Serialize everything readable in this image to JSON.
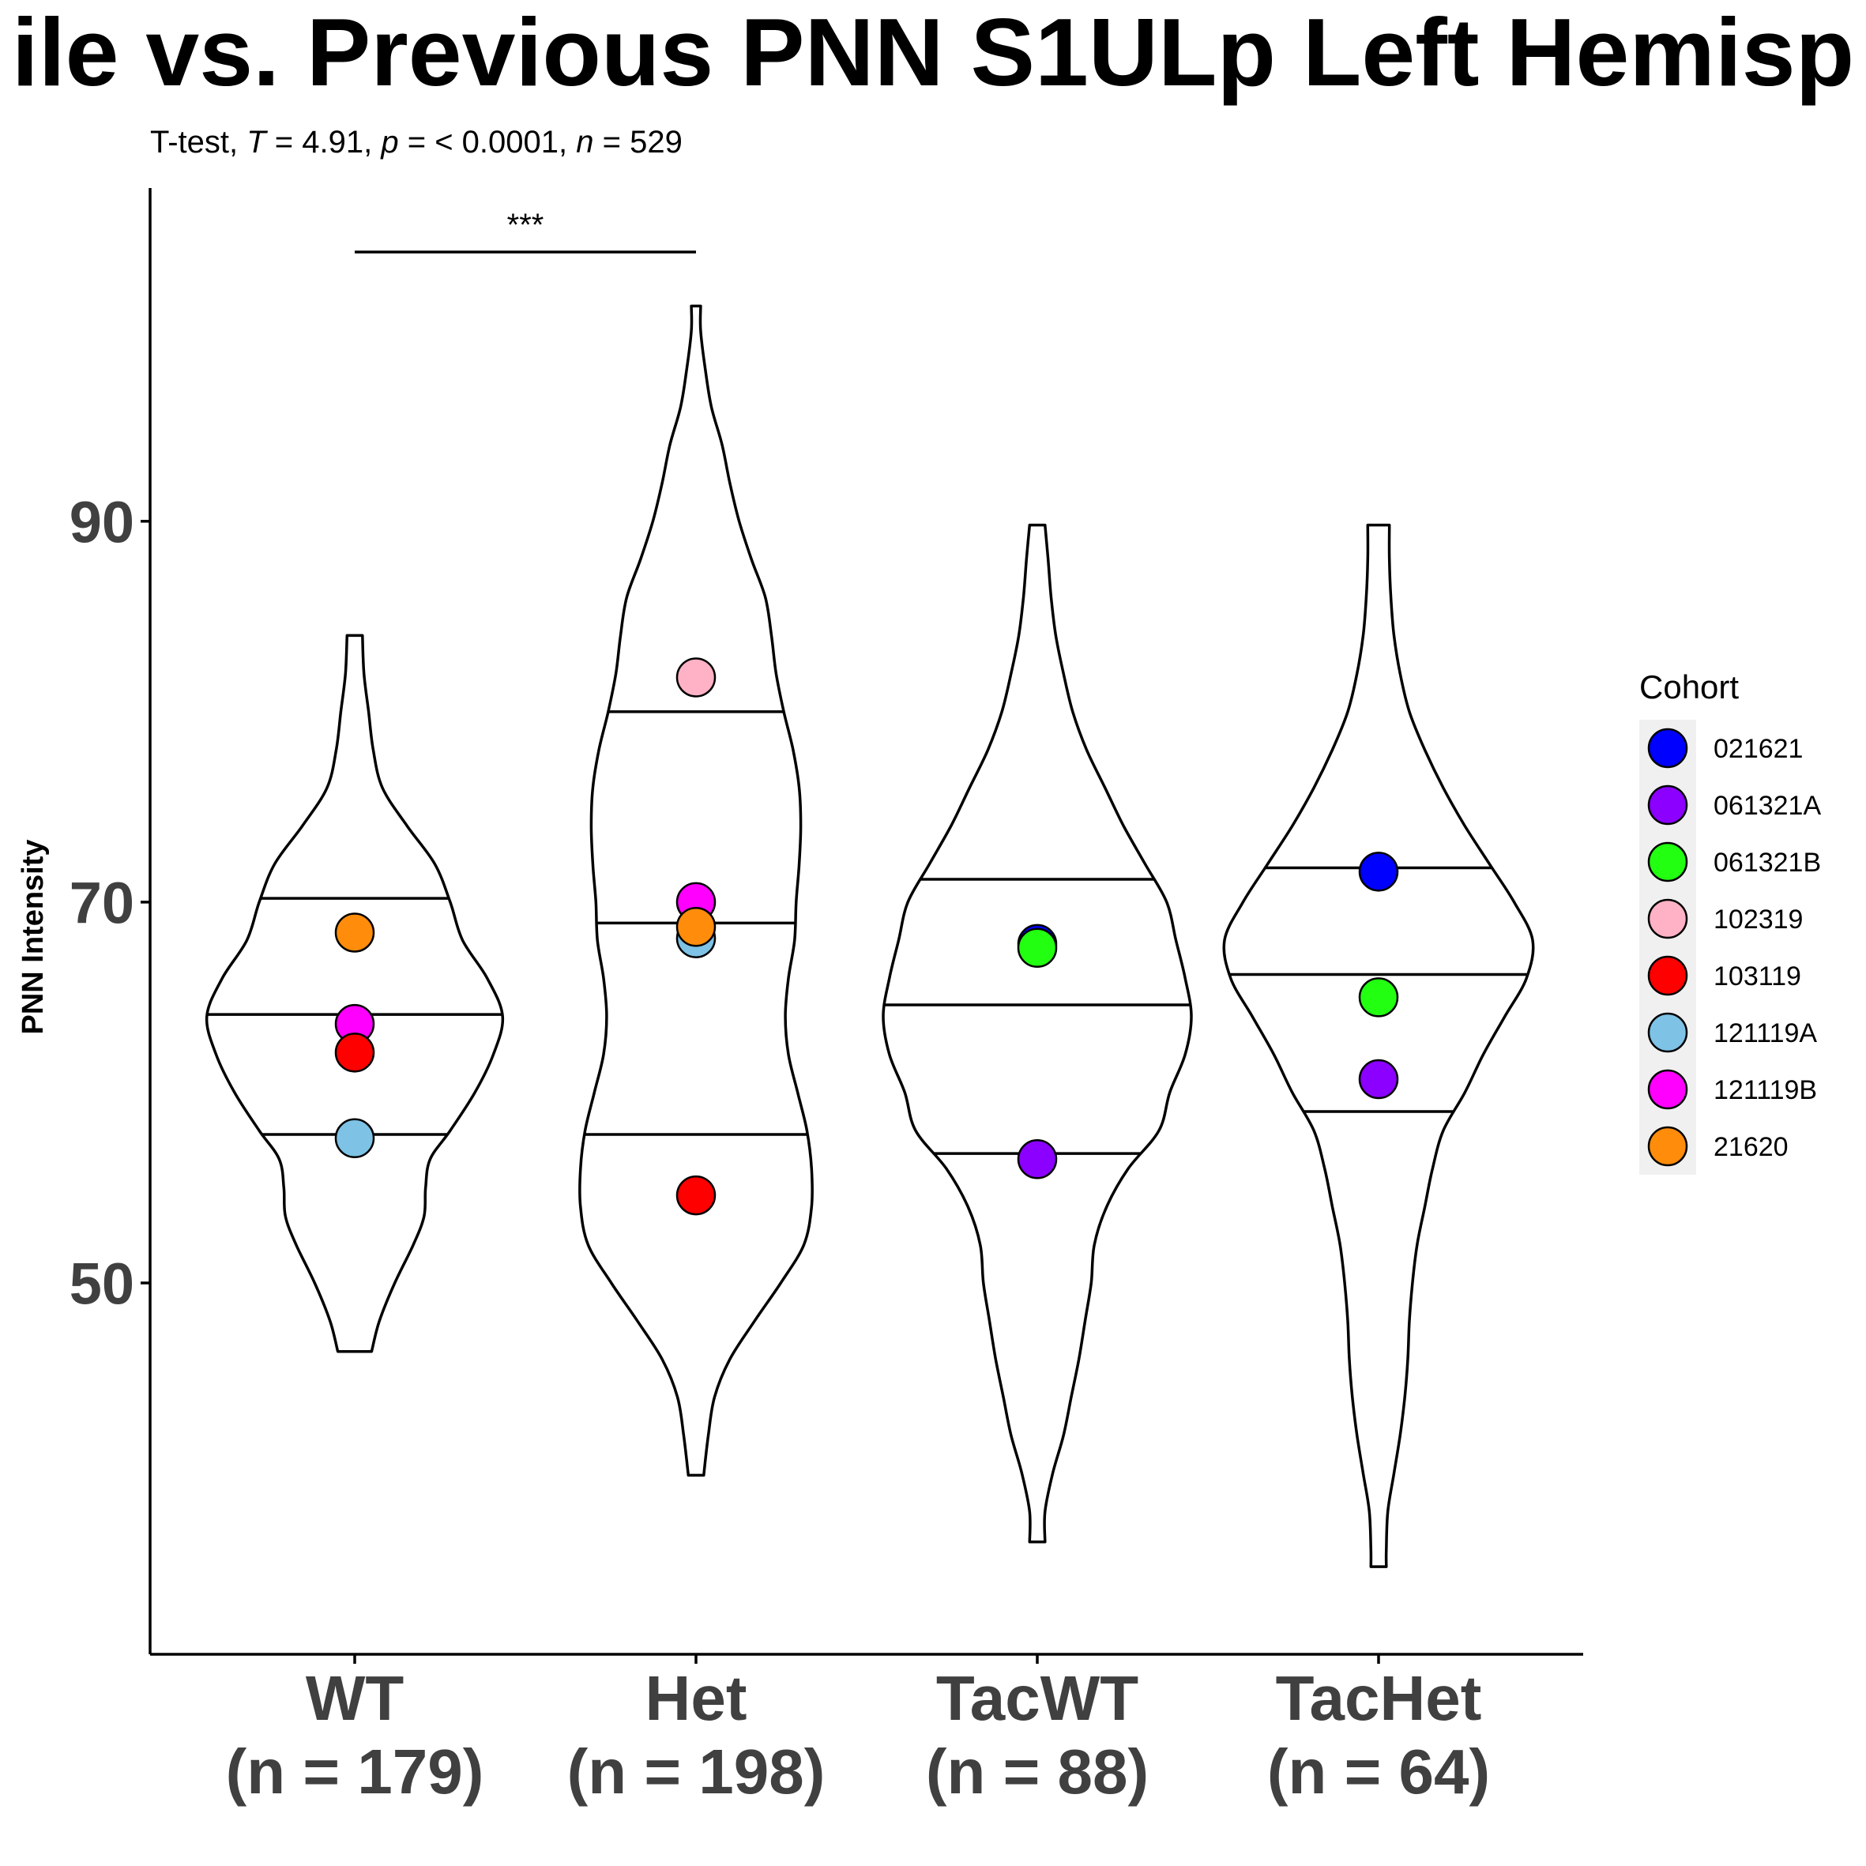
{
  "chart_data": {
    "type": "violin",
    "title": "ile vs. Previous PNN S1ULp Left Hemisp",
    "subtitle": {
      "prefix": "T-test, ",
      "t_symbol": "T",
      "t_text": " = 4.91, ",
      "p_symbol": "p",
      "p_text": " = < 0.0001, ",
      "n_symbol": "n",
      "n_text": " = 529"
    },
    "ylabel": "PNN Intensity",
    "ylim": [
      30.5,
      107.5
    ],
    "yticks": [
      50,
      70,
      90
    ],
    "categories": [
      {
        "name": "WT",
        "n_label": "(n = 179)"
      },
      {
        "name": "Het",
        "n_label": "(n = 198)"
      },
      {
        "name": "TacWT",
        "n_label": "(n = 88)"
      },
      {
        "name": "TacHet",
        "n_label": "(n = 64)"
      }
    ],
    "violins": [
      {
        "category": "WT",
        "quantiles": [
          57.8,
          64.1,
          70.2
        ],
        "profile": [
          [
            46.4,
            0.11
          ],
          [
            48,
            0.16
          ],
          [
            50,
            0.26
          ],
          [
            52,
            0.38
          ],
          [
            53.5,
            0.45
          ],
          [
            55,
            0.46
          ],
          [
            56.5,
            0.49
          ],
          [
            58,
            0.62
          ],
          [
            60,
            0.78
          ],
          [
            62,
            0.9
          ],
          [
            64,
            0.96
          ],
          [
            66,
            0.86
          ],
          [
            68,
            0.7
          ],
          [
            70,
            0.62
          ],
          [
            72,
            0.52
          ],
          [
            74,
            0.34
          ],
          [
            76,
            0.18
          ],
          [
            78,
            0.12
          ],
          [
            80,
            0.09
          ],
          [
            82,
            0.06
          ],
          [
            84,
            0.05
          ]
        ]
      },
      {
        "category": "Het",
        "quantiles": [
          57.8,
          68.9,
          80.0
        ],
        "profile": [
          [
            39.9,
            0.05
          ],
          [
            42,
            0.08
          ],
          [
            44,
            0.12
          ],
          [
            46,
            0.22
          ],
          [
            48,
            0.38
          ],
          [
            50,
            0.55
          ],
          [
            52,
            0.7
          ],
          [
            54,
            0.75
          ],
          [
            56,
            0.75
          ],
          [
            58,
            0.72
          ],
          [
            60,
            0.66
          ],
          [
            62,
            0.6
          ],
          [
            64,
            0.58
          ],
          [
            66,
            0.6
          ],
          [
            68,
            0.64
          ],
          [
            70,
            0.65
          ],
          [
            72,
            0.67
          ],
          [
            74,
            0.68
          ],
          [
            76,
            0.67
          ],
          [
            78,
            0.63
          ],
          [
            80,
            0.57
          ],
          [
            82,
            0.52
          ],
          [
            84,
            0.49
          ],
          [
            86,
            0.45
          ],
          [
            88,
            0.36
          ],
          [
            90,
            0.28
          ],
          [
            92,
            0.22
          ],
          [
            94,
            0.17
          ],
          [
            96,
            0.1
          ],
          [
            98,
            0.06
          ],
          [
            100,
            0.03
          ],
          [
            101.3,
            0.03
          ]
        ]
      },
      {
        "category": "TacWT",
        "quantiles": [
          56.8,
          64.6,
          71.2
        ],
        "profile": [
          [
            36.4,
            0.05
          ],
          [
            38,
            0.05
          ],
          [
            40,
            0.1
          ],
          [
            42,
            0.17
          ],
          [
            44,
            0.22
          ],
          [
            46,
            0.27
          ],
          [
            48,
            0.31
          ],
          [
            50,
            0.35
          ],
          [
            52,
            0.37
          ],
          [
            54,
            0.45
          ],
          [
            56,
            0.59
          ],
          [
            58,
            0.79
          ],
          [
            60,
            0.86
          ],
          [
            62,
            0.96
          ],
          [
            64,
            1.0
          ],
          [
            66,
            0.96
          ],
          [
            68,
            0.9
          ],
          [
            70,
            0.84
          ],
          [
            72,
            0.7
          ],
          [
            74,
            0.56
          ],
          [
            76,
            0.44
          ],
          [
            78,
            0.32
          ],
          [
            80,
            0.23
          ],
          [
            82,
            0.17
          ],
          [
            84,
            0.12
          ],
          [
            86,
            0.09
          ],
          [
            88,
            0.07
          ],
          [
            89.8,
            0.05
          ]
        ]
      },
      {
        "category": "TacHet",
        "quantiles": [
          59.0,
          66.2,
          71.8
        ],
        "profile": [
          [
            35.1,
            0.05
          ],
          [
            36,
            0.05
          ],
          [
            38,
            0.06
          ],
          [
            40,
            0.1
          ],
          [
            42,
            0.14
          ],
          [
            44,
            0.17
          ],
          [
            46,
            0.19
          ],
          [
            48,
            0.2
          ],
          [
            50,
            0.22
          ],
          [
            52,
            0.25
          ],
          [
            54,
            0.3
          ],
          [
            56,
            0.35
          ],
          [
            58,
            0.42
          ],
          [
            60,
            0.56
          ],
          [
            62,
            0.68
          ],
          [
            64,
            0.82
          ],
          [
            66,
            0.96
          ],
          [
            68,
            1.0
          ],
          [
            70,
            0.88
          ],
          [
            72,
            0.72
          ],
          [
            74,
            0.56
          ],
          [
            76,
            0.42
          ],
          [
            78,
            0.3
          ],
          [
            80,
            0.2
          ],
          [
            82,
            0.14
          ],
          [
            84,
            0.1
          ],
          [
            86,
            0.08
          ],
          [
            88,
            0.07
          ],
          [
            89.8,
            0.07
          ]
        ]
      }
    ],
    "points": [
      {
        "category": "WT",
        "cohort": "21620",
        "y": 68.4
      },
      {
        "category": "WT",
        "cohort": "121119B",
        "y": 63.6
      },
      {
        "category": "WT",
        "cohort": "103119",
        "y": 62.1
      },
      {
        "category": "WT",
        "cohort": "121119A",
        "y": 57.6
      },
      {
        "category": "Het",
        "cohort": "102319",
        "y": 81.8
      },
      {
        "category": "Het",
        "cohort": "121119A",
        "y": 68.1
      },
      {
        "category": "Het",
        "cohort": "121119B",
        "y": 70.0
      },
      {
        "category": "Het",
        "cohort": "21620",
        "y": 68.7
      },
      {
        "category": "Het",
        "cohort": "103119",
        "y": 54.6
      },
      {
        "category": "TacWT",
        "cohort": "021621",
        "y": 67.8
      },
      {
        "category": "TacWT",
        "cohort": "061321B",
        "y": 67.6
      },
      {
        "category": "TacWT",
        "cohort": "061321A",
        "y": 56.5
      },
      {
        "category": "TacHet",
        "cohort": "021621",
        "y": 71.6
      },
      {
        "category": "TacHet",
        "cohort": "061321B",
        "y": 65.0
      },
      {
        "category": "TacHet",
        "cohort": "061321A",
        "y": 60.7
      }
    ],
    "legend": {
      "title": "Cohort",
      "placement": "right",
      "entries": [
        {
          "label": "021621",
          "color": "#0000FF"
        },
        {
          "label": "061321A",
          "color": "#8B00FF"
        },
        {
          "label": "061321B",
          "color": "#22FF11"
        },
        {
          "label": "102319",
          "color": "#FFB2C5"
        },
        {
          "label": "103119",
          "color": "#FF0000"
        },
        {
          "label": "121119A",
          "color": "#7EC2E6"
        },
        {
          "label": "121119B",
          "color": "#FF00FF"
        },
        {
          "label": "21620",
          "color": "#FF8C0A"
        }
      ]
    },
    "significance": {
      "from": "WT",
      "to": "Het",
      "label": "***"
    },
    "grid": false
  }
}
